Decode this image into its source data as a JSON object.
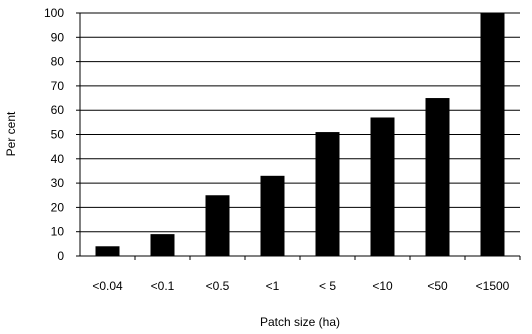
{
  "chart_data": {
    "type": "bar",
    "title": "",
    "xlabel": "Patch size (ha)",
    "ylabel": "Per cent",
    "categories": [
      "<0.04",
      "<0.1",
      "<0.5",
      "<1",
      "< 5",
      "<10",
      "<50",
      "<1500"
    ],
    "values": [
      4,
      9,
      25,
      33,
      51,
      57,
      65,
      100
    ],
    "ylim": [
      0,
      100
    ],
    "yticks": [
      0,
      10,
      20,
      30,
      40,
      50,
      60,
      70,
      80,
      90,
      100
    ],
    "grid": true,
    "legend": "none",
    "bar_color": "#000000",
    "grid_color": "#000000"
  }
}
